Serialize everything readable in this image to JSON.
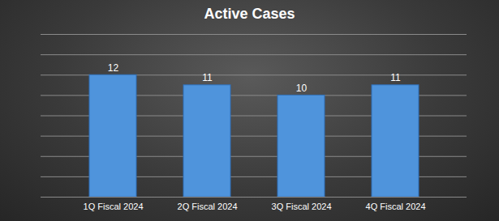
{
  "chart_data": {
    "type": "bar",
    "title": "Active Cases",
    "categories": [
      "1Q Fiscal 2024",
      "2Q Fiscal 2024",
      "3Q Fiscal 2024",
      "4Q Fiscal 2024"
    ],
    "values": [
      12,
      11,
      10,
      11
    ],
    "color": "#4f94dc",
    "ylim": [
      0,
      16
    ],
    "yticks": [
      0,
      2,
      4,
      6,
      8,
      10,
      12,
      14,
      16
    ],
    "grid": true,
    "data_labels": true,
    "tick_labels": "x"
  }
}
